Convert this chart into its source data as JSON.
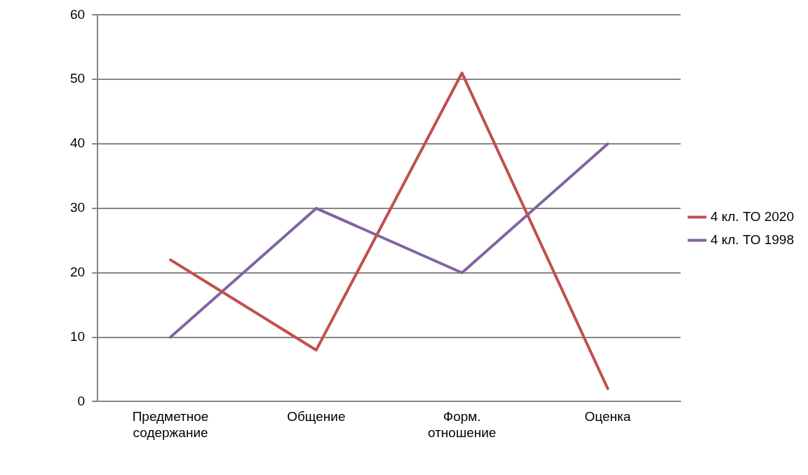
{
  "chart_data": {
    "type": "line",
    "categories": [
      "Предметное содержание",
      "Общение",
      "Форм. отношение",
      "Оценка"
    ],
    "series": [
      {
        "name": "4 кл. ТО 2020",
        "color": "#c0504d",
        "values": [
          22,
          8,
          51,
          2
        ]
      },
      {
        "name": "4 кл. ТО 1998",
        "color": "#8064a2",
        "values": [
          10,
          30,
          20,
          40
        ]
      }
    ],
    "ylim": [
      0,
      60
    ],
    "yticks": [
      0,
      10,
      20,
      30,
      40,
      50,
      60
    ],
    "grid": "y",
    "legend": "right",
    "marker": "none",
    "line_style": "solid"
  }
}
